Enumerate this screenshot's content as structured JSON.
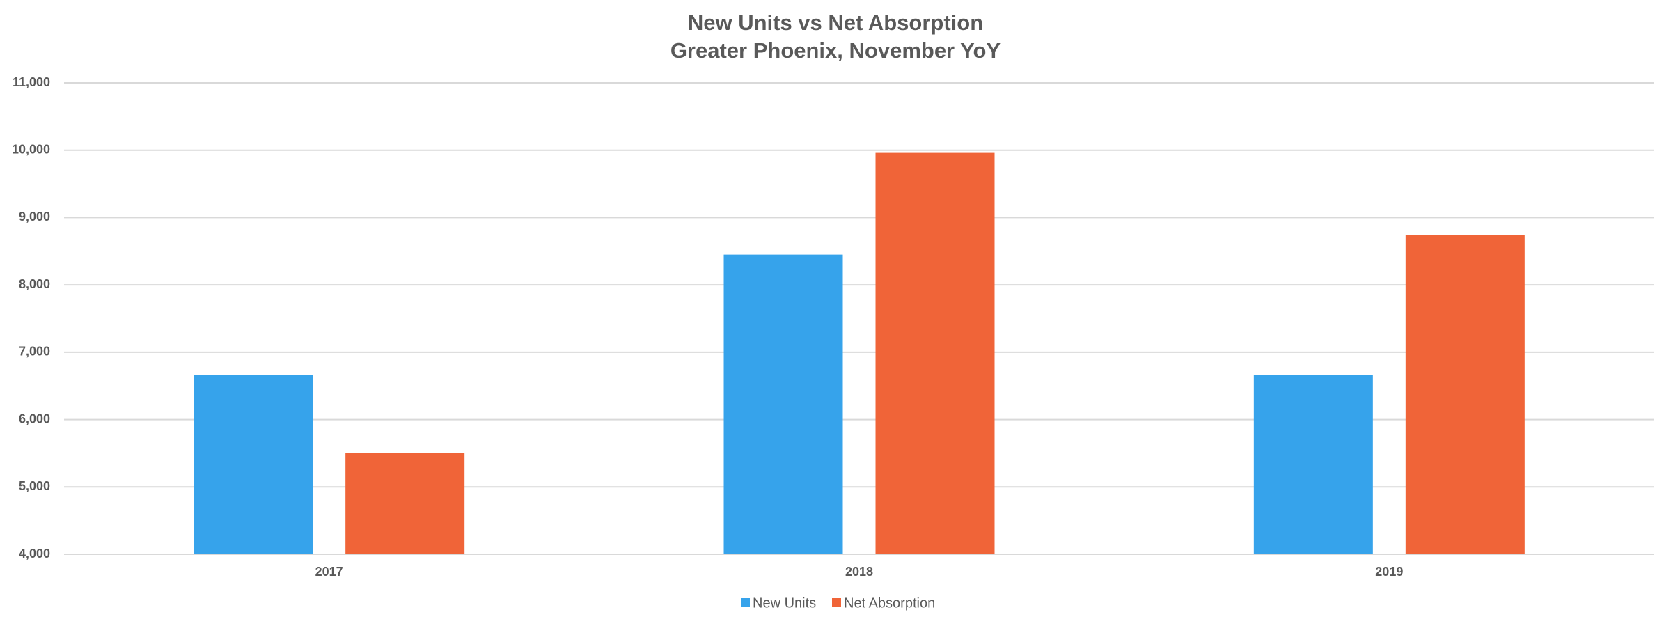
{
  "chart_data": {
    "type": "bar",
    "title": "New Units vs Net Absorption",
    "subtitle": "Greater Phoenix, November YoY",
    "categories": [
      "2017",
      "2018",
      "2019"
    ],
    "series": [
      {
        "name": "New Units",
        "color": "#36a3eb",
        "values": [
          6660,
          8450,
          6660
        ]
      },
      {
        "name": "Net Absorption",
        "color": "#f06438",
        "values": [
          5500,
          9960,
          8740
        ]
      }
    ],
    "ylim": [
      4000,
      11000
    ],
    "yticks": [
      {
        "value": 4000,
        "label": "4,000"
      },
      {
        "value": 5000,
        "label": "5,000"
      },
      {
        "value": 6000,
        "label": "6,000"
      },
      {
        "value": 7000,
        "label": "7,000"
      },
      {
        "value": 8000,
        "label": "8,000"
      },
      {
        "value": 9000,
        "label": "9,000"
      },
      {
        "value": 10000,
        "label": "10,000"
      },
      {
        "value": 11000,
        "label": "11,000"
      }
    ],
    "grid": true
  }
}
